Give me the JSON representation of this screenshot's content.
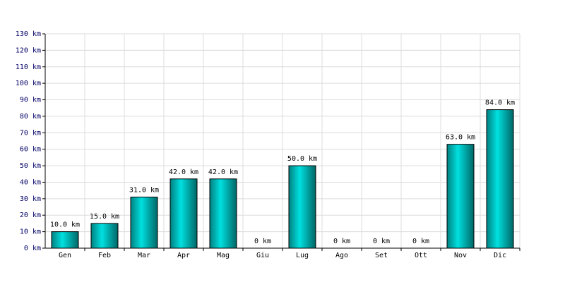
{
  "chart_data": {
    "type": "bar",
    "categories": [
      "Gen",
      "Feb",
      "Mar",
      "Apr",
      "Mag",
      "Giu",
      "Lug",
      "Ago",
      "Set",
      "Ott",
      "Nov",
      "Dic"
    ],
    "values": [
      10,
      15,
      31,
      42,
      42,
      0,
      50,
      0,
      0,
      0,
      63,
      84
    ],
    "value_labels": [
      "10.0 km",
      "15.0 km",
      "31.0 km",
      "42.0 km",
      "42.0 km",
      "0 km",
      "50.0 km",
      "0 km",
      "0 km",
      "0 km",
      "63.0 km",
      "84.0 km"
    ],
    "color": "#00e0e0",
    "ylim": [
      0,
      130
    ],
    "yticks": [
      {
        "value": 0,
        "label": "0 km"
      },
      {
        "value": 10,
        "label": "10 km"
      },
      {
        "value": 20,
        "label": "20 km"
      },
      {
        "value": 30,
        "label": "30 km"
      },
      {
        "value": 40,
        "label": "40 km"
      },
      {
        "value": 50,
        "label": "50 km"
      },
      {
        "value": 60,
        "label": "60 km"
      },
      {
        "value": 70,
        "label": "70 km"
      },
      {
        "value": 80,
        "label": "80 km"
      },
      {
        "value": 90,
        "label": "90 km"
      },
      {
        "value": 100,
        "label": "100 km"
      },
      {
        "value": 110,
        "label": "110 km"
      },
      {
        "value": 120,
        "label": "120 km"
      },
      {
        "value": 130,
        "label": "130 km"
      }
    ],
    "grid": true
  }
}
